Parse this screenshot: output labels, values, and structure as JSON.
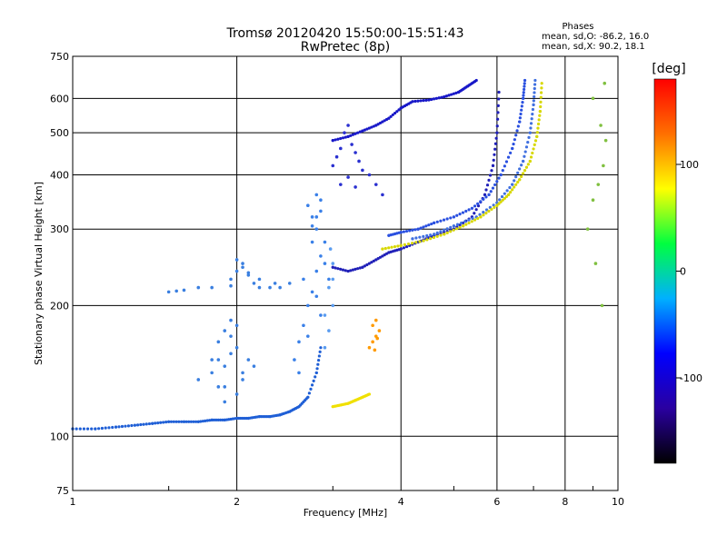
{
  "chart_data": {
    "type": "scatter",
    "title": "Tromsø 20120420 15:50:00-15:51:43",
    "subtitle": "RwPretec (8p)",
    "xlabel": "Frequency [MHz]",
    "ylabel": "Stationary phase Virtual Height [km]",
    "x_scale": "log",
    "y_scale": "log",
    "xlim": [
      1,
      10
    ],
    "ylim": [
      75,
      750
    ],
    "x_ticks": [
      1,
      2,
      4,
      6,
      8,
      10
    ],
    "y_ticks": [
      75,
      100,
      200,
      300,
      400,
      500,
      600,
      750
    ],
    "grid": true,
    "phase_legend": {
      "heading": "Phases",
      "line_o": "mean, sd,O: -86.2, 16.0",
      "line_x": "mean, sd,X: 90.2, 18.1"
    },
    "colorbar": {
      "label": "[deg]",
      "ticks": [
        100,
        0,
        -100
      ],
      "range": [
        -180,
        180
      ],
      "colors": [
        "#000000",
        "#2a00a0",
        "#0000ff",
        "#00b0ff",
        "#00ff40",
        "#ffff00",
        "#ff7000",
        "#ff0000"
      ]
    },
    "series": [
      {
        "color": "#1f5fd6",
        "mode": "line",
        "x": [
          1.0,
          1.1,
          1.2,
          1.3,
          1.4,
          1.5,
          1.6,
          1.7,
          1.8,
          1.9,
          2.0,
          2.1,
          2.2,
          2.3,
          2.4,
          2.5,
          2.6,
          2.7,
          2.8,
          2.85
        ],
        "y": [
          104,
          104,
          105,
          106,
          107,
          108,
          108,
          108,
          109,
          109,
          110,
          110,
          111,
          111,
          112,
          114,
          117,
          123,
          140,
          160
        ]
      },
      {
        "color": "#3a7fe0",
        "mode": "cloud",
        "x": [
          1.7,
          1.8,
          1.85,
          1.9,
          1.95,
          2.0,
          1.95,
          1.9,
          1.85,
          1.8,
          1.9,
          2.0,
          2.05,
          2.1,
          2.15,
          1.95,
          2.0,
          1.85,
          1.9,
          2.05
        ],
        "y": [
          135,
          140,
          150,
          145,
          155,
          160,
          170,
          175,
          165,
          150,
          130,
          125,
          140,
          150,
          145,
          185,
          180,
          130,
          120,
          135
        ]
      },
      {
        "color": "#3a7fe0",
        "mode": "cloud",
        "x": [
          1.95,
          2.0,
          2.05,
          2.1,
          2.15,
          2.2,
          2.3,
          2.4,
          2.5,
          2.0,
          2.05,
          2.1,
          1.95,
          2.2,
          2.35,
          1.5,
          1.55,
          1.6,
          1.7,
          1.8
        ],
        "y": [
          230,
          240,
          250,
          235,
          225,
          220,
          220,
          220,
          225,
          255,
          245,
          238,
          222,
          230,
          225,
          215,
          216,
          217,
          220,
          220
        ]
      },
      {
        "color": "#3a80e8",
        "mode": "cloud",
        "x": [
          2.55,
          2.6,
          2.65,
          2.7,
          2.75,
          2.8,
          2.85,
          2.9,
          2.8,
          2.75,
          2.7,
          2.85,
          2.8,
          2.75,
          2.9,
          2.65,
          2.8,
          2.85,
          2.7,
          2.95,
          2.6,
          2.8,
          2.85,
          2.75
        ],
        "y": [
          150,
          165,
          180,
          200,
          215,
          240,
          260,
          280,
          300,
          320,
          340,
          350,
          320,
          280,
          250,
          230,
          210,
          190,
          170,
          230,
          140,
          360,
          330,
          305
        ]
      },
      {
        "color": "#5a9cf0",
        "mode": "cloud",
        "x": [
          2.9,
          2.95,
          3.0,
          2.95,
          3.0,
          2.9,
          2.97,
          3.0
        ],
        "y": [
          160,
          175,
          200,
          220,
          250,
          190,
          270,
          230
        ]
      },
      {
        "color": "#1818c8",
        "mode": "line",
        "x": [
          3.0,
          3.2,
          3.4,
          3.6,
          3.8,
          4.0,
          4.2,
          4.5,
          4.8,
          5.1,
          5.3,
          5.5
        ],
        "y": [
          480,
          490,
          505,
          520,
          540,
          570,
          590,
          595,
          605,
          620,
          640,
          660
        ]
      },
      {
        "color": "#2a30d0",
        "mode": "cloud",
        "x": [
          3.0,
          3.05,
          3.1,
          3.15,
          3.2,
          3.25,
          3.3,
          3.35,
          3.4,
          3.5,
          3.6,
          3.7,
          3.1,
          3.2,
          3.3
        ],
        "y": [
          420,
          440,
          460,
          500,
          520,
          470,
          450,
          430,
          410,
          400,
          380,
          360,
          380,
          395,
          375
        ]
      },
      {
        "color": "#2020b8",
        "mode": "line",
        "x": [
          3.0,
          3.2,
          3.4,
          3.6,
          3.8,
          4.0,
          4.3,
          4.6,
          5.0,
          5.4,
          5.7,
          5.9,
          6.0,
          6.05
        ],
        "y": [
          245,
          240,
          245,
          255,
          265,
          270,
          280,
          290,
          300,
          320,
          360,
          420,
          500,
          620
        ]
      },
      {
        "color": "#2a50e0",
        "mode": "line",
        "x": [
          3.8,
          4.0,
          4.3,
          4.6,
          5.0,
          5.4,
          5.8,
          6.1,
          6.4,
          6.6,
          6.7,
          6.75
        ],
        "y": [
          290,
          295,
          300,
          310,
          320,
          335,
          360,
          400,
          460,
          530,
          600,
          660
        ]
      },
      {
        "color": "#4070e0",
        "mode": "line",
        "x": [
          4.2,
          4.6,
          5.0,
          5.5,
          6.0,
          6.4,
          6.7,
          6.9,
          7.0,
          7.05
        ],
        "y": [
          285,
          292,
          305,
          320,
          345,
          380,
          430,
          500,
          580,
          660
        ]
      },
      {
        "color": "#d8d800",
        "mode": "line",
        "x": [
          3.7,
          4.0,
          4.4,
          4.8,
          5.2,
          5.6,
          6.0,
          6.3,
          6.6,
          6.9,
          7.1,
          7.2,
          7.25
        ],
        "y": [
          270,
          275,
          282,
          292,
          305,
          320,
          340,
          360,
          390,
          430,
          490,
          560,
          650
        ]
      },
      {
        "color": "#f0e000",
        "mode": "line",
        "x": [
          3.0,
          3.1,
          3.2,
          3.3,
          3.4,
          3.5
        ],
        "y": [
          117,
          118,
          119,
          121,
          123,
          125
        ]
      },
      {
        "color": "#ff9a00",
        "mode": "cloud",
        "x": [
          3.5,
          3.55,
          3.6,
          3.65,
          3.6,
          3.55,
          3.62,
          3.58
        ],
        "y": [
          160,
          165,
          170,
          175,
          185,
          180,
          168,
          158
        ]
      },
      {
        "color": "#80c040",
        "mode": "cloud",
        "x": [
          8.8,
          9.0,
          9.2,
          9.4,
          9.5,
          9.3,
          9.0,
          9.45,
          9.1,
          9.35
        ],
        "y": [
          300,
          350,
          380,
          420,
          480,
          520,
          600,
          650,
          250,
          200
        ]
      }
    ]
  }
}
